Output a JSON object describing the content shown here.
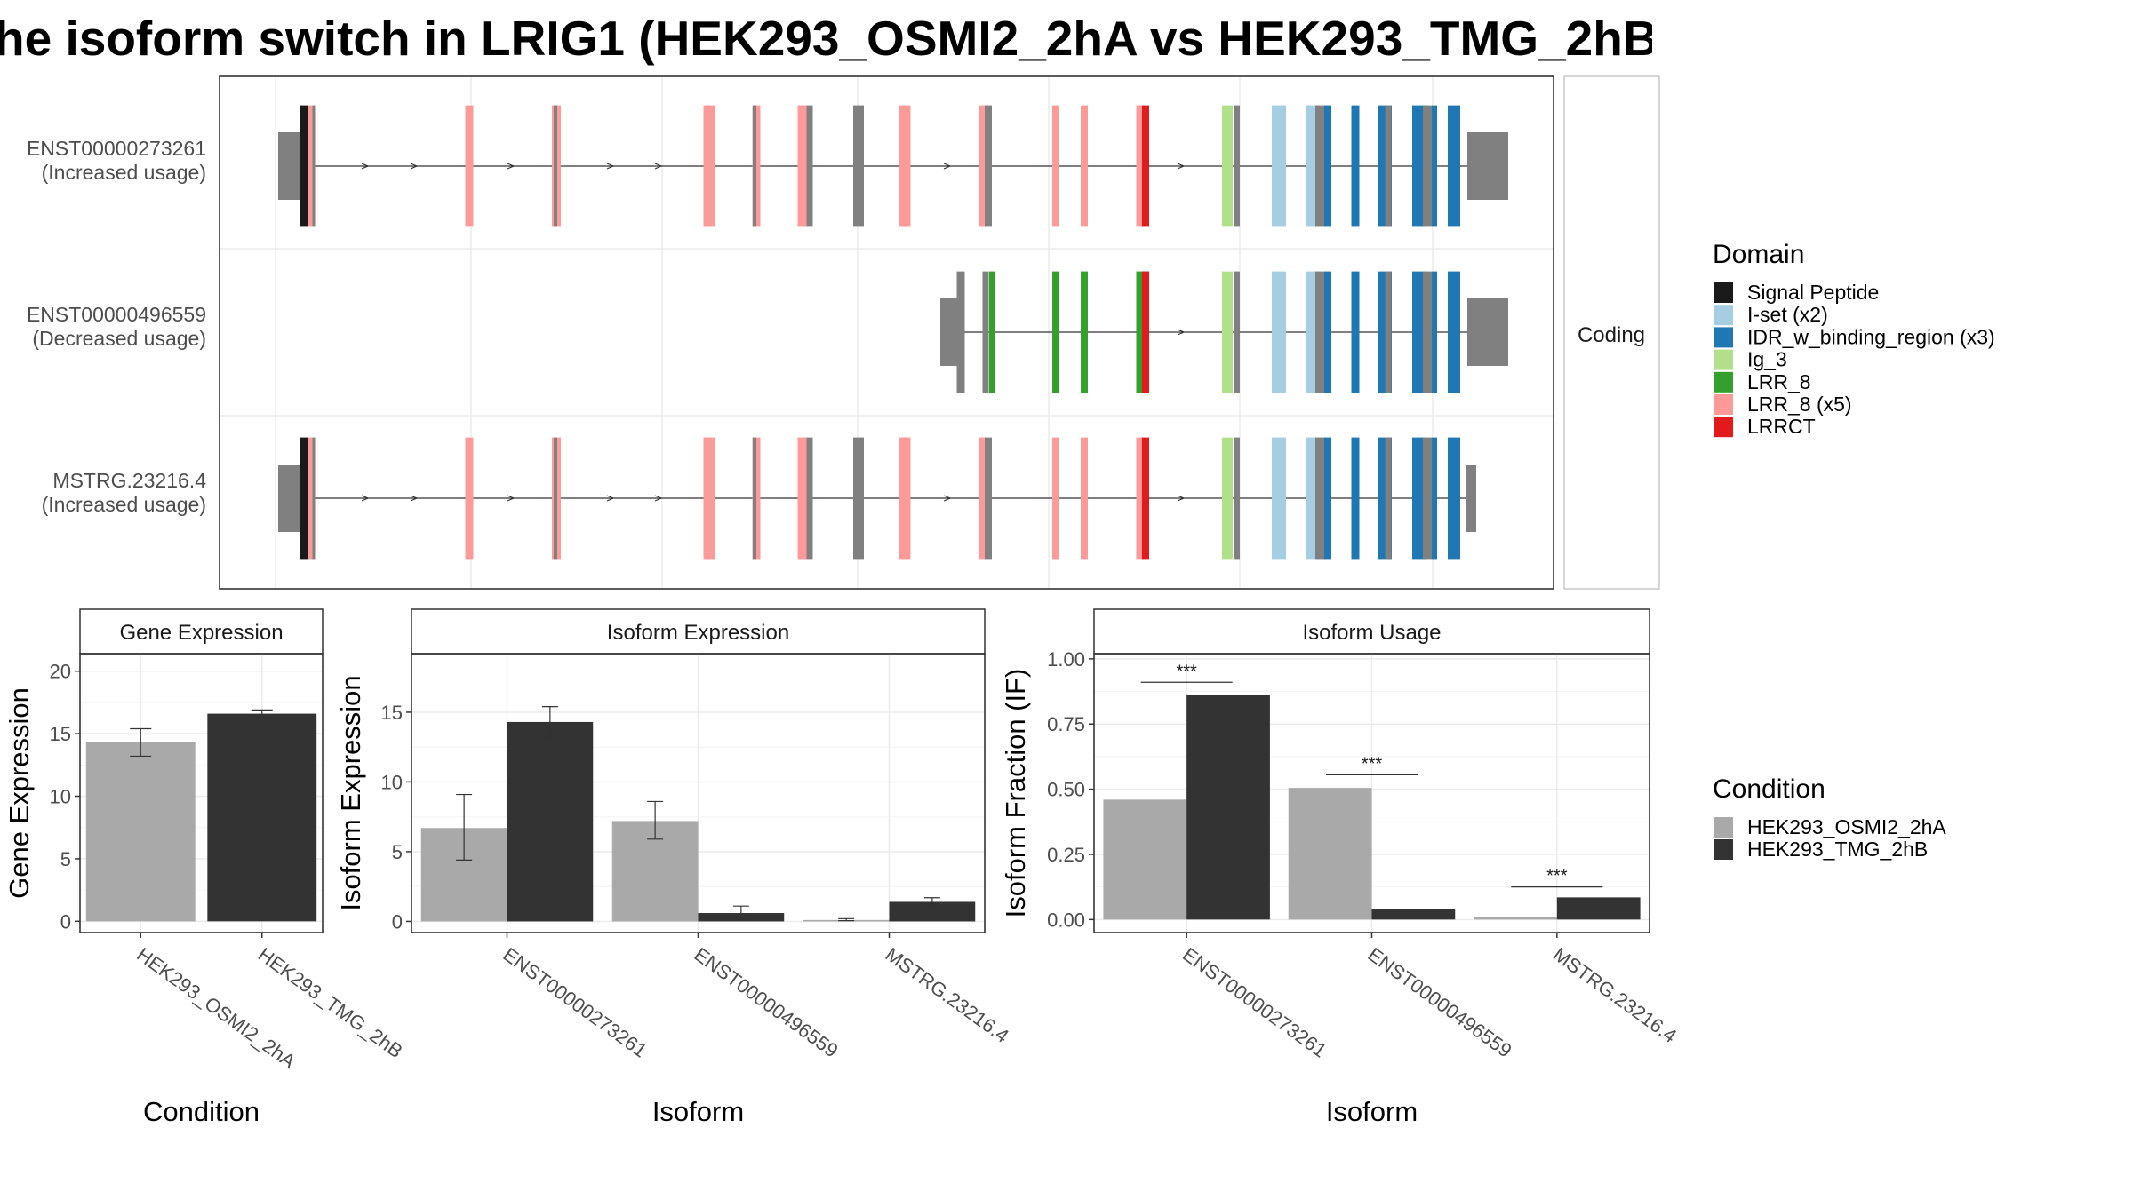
{
  "title": "he isoform switch in LRIG1 (HEK293_OSMI2_2hA vs HEK293_TMG_2hB",
  "structure": {
    "facet_label": "Coding",
    "isoforms": [
      {
        "id": "ENST00000273261",
        "usage": "(Increased usage)"
      },
      {
        "id": "ENST00000496559",
        "usage": "(Decreased usage)"
      },
      {
        "id": "MSTRG.23216.4",
        "usage": "(Increased usage)"
      }
    ]
  },
  "domain_legend": {
    "title": "Domain",
    "items": [
      {
        "label": "Signal Peptide",
        "color": "#1a1a1a"
      },
      {
        "label": "I-set (x2)",
        "color": "#a6cee3"
      },
      {
        "label": "IDR_w_binding_region (x3)",
        "color": "#1f78b4"
      },
      {
        "label": "Ig_3",
        "color": "#b2df8a"
      },
      {
        "label": "LRR_8",
        "color": "#33a02c"
      },
      {
        "label": "LRR_8 (x5)",
        "color": "#fb9a99"
      },
      {
        "label": "LRRCT",
        "color": "#e31a1c"
      }
    ]
  },
  "condition_legend": {
    "title": "Condition",
    "items": [
      {
        "label": "HEK293_OSMI2_2hA",
        "color": "#a9a9a9"
      },
      {
        "label": "HEK293_TMG_2hB",
        "color": "#333333"
      }
    ]
  },
  "chart_data": [
    {
      "type": "bar",
      "title": "Gene Expression",
      "xlabel": "Condition",
      "ylabel": "Gene Expression",
      "categories": [
        "HEK293_OSMI2_2hA",
        "HEK293_TMG_2hB"
      ],
      "values": [
        14.3,
        16.6
      ],
      "errors": [
        [
          13.2,
          15.4
        ],
        [
          16.3,
          16.9
        ]
      ],
      "colors": [
        "#a9a9a9",
        "#333333"
      ],
      "ylim": [
        -0.9,
        21.4
      ],
      "yticks": [
        0,
        5,
        10,
        15,
        20
      ],
      "ytick_labels": [
        "0",
        "5",
        "10",
        "15",
        "20"
      ]
    },
    {
      "type": "bar",
      "title": "Isoform Expression",
      "xlabel": "Isoform",
      "ylabel": "Isoform Expression",
      "categories": [
        "ENST00000273261",
        "ENST00000496559",
        "MSTRG.23216.4"
      ],
      "series": [
        {
          "name": "HEK293_OSMI2_2hA",
          "values": [
            6.7,
            7.2,
            0.1
          ],
          "errors": [
            [
              4.4,
              9.1
            ],
            [
              5.9,
              8.6
            ],
            [
              0.05,
              0.2
            ]
          ]
        },
        {
          "name": "HEK293_TMG_2hB",
          "values": [
            14.3,
            0.6,
            1.4
          ],
          "errors": [
            [
              13.2,
              15.4
            ],
            [
              0.2,
              1.1
            ],
            [
              1.1,
              1.7
            ]
          ]
        }
      ],
      "ylim": [
        -0.8,
        19.2
      ],
      "yticks": [
        0,
        5,
        10,
        15
      ],
      "ytick_labels": [
        "0",
        "5",
        "10",
        "15"
      ]
    },
    {
      "type": "bar",
      "title": "Isoform Usage",
      "xlabel": "Isoform",
      "ylabel": "Isoform Fraction (IF)",
      "categories": [
        "ENST00000273261",
        "ENST00000496559",
        "MSTRG.23216.4"
      ],
      "series": [
        {
          "name": "HEK293_OSMI2_2hA",
          "values": [
            0.46,
            0.505,
            0.01
          ]
        },
        {
          "name": "HEK293_TMG_2hB",
          "values": [
            0.86,
            0.04,
            0.085
          ]
        }
      ],
      "significance": [
        "***",
        "***",
        "***"
      ],
      "sig_y": [
        0.91,
        0.555,
        0.125
      ],
      "ylim": [
        -0.05,
        1.02
      ],
      "yticks": [
        0,
        0.25,
        0.5,
        0.75,
        1.0
      ],
      "ytick_labels": [
        "0.00",
        "0.25",
        "0.50",
        "0.75",
        "1.00"
      ]
    }
  ]
}
